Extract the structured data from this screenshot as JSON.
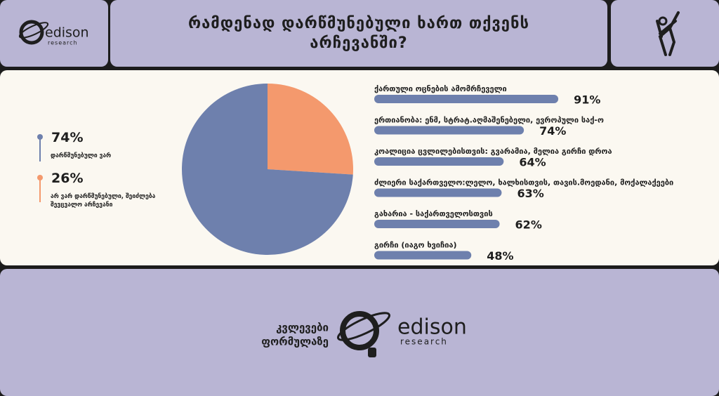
{
  "header": {
    "title": "რამდენად დარწმუნებული ხართ თქვენს არჩევანში?",
    "logo": "edison",
    "logo_sub": "research"
  },
  "chart_data": [
    {
      "type": "pie",
      "categories": [
        "დარწმუნებული ვარ",
        "არ ვარ დარწმუნებული, შეიძლება შევცვალო არჩევანი"
      ],
      "values": [
        74,
        26
      ],
      "value_labels": [
        "74%",
        "26%"
      ],
      "colors": [
        "#6e80ad",
        "#f4996d"
      ]
    },
    {
      "type": "bar",
      "orientation": "horizontal",
      "categories": [
        "ქართული ოცნების ამომრჩეველი",
        "ერთიანობა: ენმ, სტრატ.აღმაშენებელი, ევროპული საქ-ო",
        "კოალიცია ცვლილებისთვის: გვარამია, მელია გირჩი დროა",
        "ძლიერი საქართველო:ლელო, ხალხისთვის, თავის.მოედანი, მოქალაქეები",
        "გახარია - საქართველოსთვის",
        "გირჩი (იაგო ხვიჩია)"
      ],
      "values": [
        91,
        74,
        64,
        63,
        62,
        48
      ],
      "value_labels": [
        "91%",
        "74%",
        "64%",
        "63%",
        "62%",
        "48%"
      ],
      "color": "#6e80ad",
      "xlim": [
        0,
        100
      ]
    }
  ],
  "footer": {
    "tagline": [
      "კვლევები",
      "ფორმულაზე"
    ],
    "logo": "edison",
    "logo_sub": "research"
  }
}
